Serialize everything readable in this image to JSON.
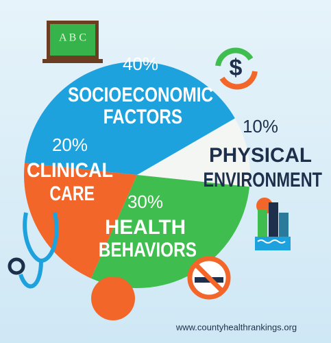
{
  "chart_data": {
    "type": "pie",
    "categories": [
      "SOCIOECONOMIC FACTORS",
      "PHYSICAL ENVIRONMENT",
      "HEALTH BEHAVIORS",
      "CLINICAL CARE"
    ],
    "values": [
      40,
      10,
      30,
      20
    ],
    "value_labels": [
      "40%",
      "10%",
      "30%",
      "20%"
    ],
    "colors": [
      "#1ea2dd",
      "#f3f6f3",
      "#3fbd4e",
      "#f2662a"
    ],
    "source": "www.countyhealthrankings.org"
  }
}
